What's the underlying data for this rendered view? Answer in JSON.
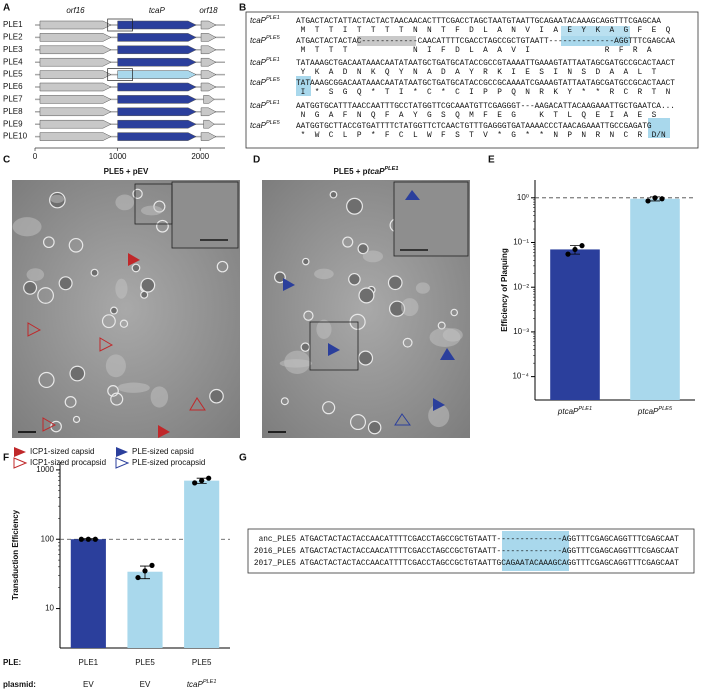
{
  "panel_labels": [
    "A",
    "B",
    "C",
    "D",
    "E",
    "F",
    "G"
  ],
  "panel_a": {
    "gene_names": [
      "orf16",
      "tcaP",
      "orf18"
    ],
    "xlim": [
      0,
      2300
    ],
    "xticks": [
      0,
      1000,
      2000
    ],
    "rows": [
      {
        "name": "PLE1",
        "boxed": true,
        "genes": [
          {
            "start": 60,
            "end": 920,
            "color": "#c8c8c8"
          },
          {
            "start": 1000,
            "end": 1950,
            "color": "#2b3f9c"
          },
          {
            "start": 2010,
            "end": 2190,
            "color": "#c8c8c8"
          }
        ]
      },
      {
        "name": "PLE2",
        "boxed": false,
        "genes": [
          {
            "start": 60,
            "end": 920,
            "color": "#c8c8c8"
          },
          {
            "start": 1000,
            "end": 1950,
            "color": "#2b3f9c"
          },
          {
            "start": 2010,
            "end": 2190,
            "color": "#c8c8c8"
          }
        ]
      },
      {
        "name": "PLE3",
        "boxed": false,
        "genes": [
          {
            "start": 60,
            "end": 920,
            "color": "#c8c8c8"
          },
          {
            "start": 1000,
            "end": 1950,
            "color": "#2b3f9c"
          },
          {
            "start": 2010,
            "end": 2190,
            "color": "#c8c8c8"
          }
        ]
      },
      {
        "name": "PLE4",
        "boxed": false,
        "genes": [
          {
            "start": 60,
            "end": 920,
            "color": "#c8c8c8"
          },
          {
            "start": 1000,
            "end": 1950,
            "color": "#2b3f9c"
          },
          {
            "start": 2010,
            "end": 2190,
            "color": "#c8c8c8"
          }
        ]
      },
      {
        "name": "PLE5",
        "boxed": true,
        "genes": [
          {
            "start": 60,
            "end": 920,
            "color": "#c8c8c8"
          },
          {
            "start": 1000,
            "end": 1950,
            "color": "#a9d8ec"
          },
          {
            "start": 2010,
            "end": 2190,
            "color": "#c8c8c8"
          }
        ]
      },
      {
        "name": "PLE6",
        "boxed": false,
        "genes": [
          {
            "start": 60,
            "end": 920,
            "color": "#c8c8c8"
          },
          {
            "start": 1000,
            "end": 1950,
            "color": "#2b3f9c"
          },
          {
            "start": 2010,
            "end": 2190,
            "color": "#c8c8c8"
          }
        ]
      },
      {
        "name": "PLE7",
        "boxed": false,
        "genes": [
          {
            "start": 60,
            "end": 920,
            "color": "#c8c8c8"
          },
          {
            "start": 1000,
            "end": 1950,
            "color": "#2b3f9c"
          },
          {
            "start": 2040,
            "end": 2170,
            "color": "#c8c8c8"
          }
        ]
      },
      {
        "name": "PLE8",
        "boxed": false,
        "genes": [
          {
            "start": 60,
            "end": 920,
            "color": "#c8c8c8"
          },
          {
            "start": 1000,
            "end": 1950,
            "color": "#2b3f9c"
          },
          {
            "start": 2010,
            "end": 2190,
            "color": "#c8c8c8"
          }
        ]
      },
      {
        "name": "PLE9",
        "boxed": false,
        "genes": [
          {
            "start": 60,
            "end": 920,
            "color": "#c8c8c8"
          },
          {
            "start": 1000,
            "end": 1950,
            "color": "#2b3f9c"
          },
          {
            "start": 2040,
            "end": 2170,
            "color": "#c8c8c8"
          }
        ]
      },
      {
        "name": "PLE10",
        "boxed": false,
        "genes": [
          {
            "start": 60,
            "end": 920,
            "color": "#c8c8c8"
          },
          {
            "start": 1000,
            "end": 1950,
            "color": "#2b3f9c"
          },
          {
            "start": 2010,
            "end": 2190,
            "color": "#c8c8c8"
          }
        ]
      }
    ]
  },
  "panel_b": {
    "blocks": [
      [
        {
          "gene": "tcaP",
          "sup": "PLE1",
          "seq": "ATGACTACTATTACTACTACTAACAACACTTTCGACCTAGCTAATGTAATTGCAGAATACAAAGCAGGTTTCGAGCAA",
          "aa": " M  T  T  I  T  T  T  T  N  N  T  F  D  L  A  N  V  I  A  E  Y  K  A  G  F  E  Q"
        },
        {
          "gene": "tcaP",
          "sup": "PLE5",
          "seq": "ATGACTACTACTAC------------CAACATTTTCGACCTAGCCGCTGTAATT--------------AGGTTTCGAGCAA",
          "aa": " M  T  T  T              N  I  F  D  L  A  A  V  I                R  F  R  A"
        }
      ],
      [
        {
          "gene": "tcaP",
          "sup": "PLE1",
          "seq": "TATAAAGCTGACAATAAACAATATAATGCTGATGCATACCGCCGTAAAATTGAAAGTATTAATAGCGATGCCGCACTAACT",
          "aa": " Y  K  A  D  N  K  Q  Y  N  A  D  A  Y  R  K  I  E  S  I  N  S  D  A  A  L  T"
        },
        {
          "gene": "tcaP",
          "sup": "PLE5",
          "seq": "TATAAAGCGGACAATAAACAATATAATGCTGATGCATACCGCCGCAAAATCGAAAGTATTAATAGCGATGCCGCACTAACT",
          "aa": " I  *  S  G  Q  *  T  I  *  C  *  C  I  P  P  Q  N  R  K  Y  *  *  R  C  R  T  N"
        }
      ],
      [
        {
          "gene": "tcaP",
          "sup": "PLE1",
          "seq": "AATGGTGCATTTAACCAATTTGCCTATGGTTCGCAAATGTTCGAGGGT---AAGACATTACAAGAAATTGCTGAATCA...",
          "aa": " N  G  A  F  N  Q  F  A  Y  G  S  Q  M  F  E  G     K  T  L  Q  E  I  A  E  S"
        },
        {
          "gene": "tcaP",
          "sup": "PLE5",
          "seq": "AATGGTGCTTACCGTGATTTTCTATGGTTCTCAACTGTTTGAGGGTGATAAAACCCTAACAGAAATTGCCGAGATG",
          "aa": " *  W  C  L  P  *  F  C  L  W  F  S  T  V  *  G  *  *  N  P  N  R  N  C  R  D/N"
        }
      ]
    ]
  },
  "panel_c": {
    "title": "PLE5 + pEV",
    "legend": [
      "ICP1-sized capsid",
      "ICP1-sized procapsid",
      "PLE-sized capsid",
      "PLE-sized procapsid"
    ]
  },
  "panel_d": {
    "title_prefix": "PLE5 + p",
    "title_gene": "tcaP",
    "title_sup": "PLE1"
  },
  "chart_data": [
    {
      "type": "bar",
      "y_label": "Efficiency of Plaquing",
      "log_y": true,
      "categories": [
        "ptcaP",
        "ptcaP"
      ],
      "category_superscripts": [
        "PLE1",
        "PLE5"
      ],
      "values": [
        0.07,
        0.95
      ],
      "errors": [
        0.015,
        0.1
      ],
      "points": [
        [
          0.055,
          0.07,
          0.085
        ],
        [
          0.85,
          1.0,
          0.95
        ]
      ],
      "colors": [
        "#2b3f9c",
        "#a9d8ec"
      ],
      "reference_line": 1,
      "ylim": [
        3e-05,
        2.5
      ],
      "yticks": [
        {
          "value": 1,
          "label": "10⁰"
        },
        {
          "value": 0.1,
          "label": "10⁻¹"
        },
        {
          "value": 0.01,
          "label": "10⁻²"
        },
        {
          "value": 0.001,
          "label": "10⁻³"
        },
        {
          "value": 0.0001,
          "label": "10⁻⁴"
        }
      ]
    },
    {
      "type": "bar",
      "y_label": "Transduction Efficiency",
      "log_y": true,
      "row_labels": [
        "PLE:",
        "plasmid:"
      ],
      "categories": [
        "PLE1",
        "PLE5",
        "PLE5"
      ],
      "plasmids": [
        "EV",
        "EV",
        "tcaP"
      ],
      "plasmid_superscripts": [
        null,
        null,
        "PLE1"
      ],
      "values": [
        100,
        34,
        700
      ],
      "errors": [
        2,
        7,
        60
      ],
      "points": [
        [
          100,
          100,
          100
        ],
        [
          28,
          35,
          42
        ],
        [
          650,
          700,
          760
        ]
      ],
      "colors": [
        "#2b3f9c",
        "#a9d8ec",
        "#a9d8ec"
      ],
      "reference_line": 100,
      "ylim": [
        2.7,
        1300
      ],
      "yticks": [
        1000,
        100,
        10
      ]
    }
  ],
  "panel_g": {
    "rows": [
      {
        "name": "anc_PLE5",
        "seq": "ATGACTACTACTACCAACATTTTCGACCTAGCCGCTGTAATT--------------AGGTTTCGAGCAGGTTTCGAGCAAT"
      },
      {
        "name": "2016_PLE5",
        "seq": "ATGACTACTACTACCAACATTTTCGACCTAGCCGCTGTAATT--------------AGGTTTCGAGCAGGTTTCGAGCAAT"
      },
      {
        "name": "2017_PLE5",
        "seq": "ATGACTACTACTACCAACATTTTCGACCTAGCCGCTGTAATTGCAGAATACAAAGCAGGTTTCGAGCAGGTTTCGAGCAAT"
      }
    ]
  }
}
